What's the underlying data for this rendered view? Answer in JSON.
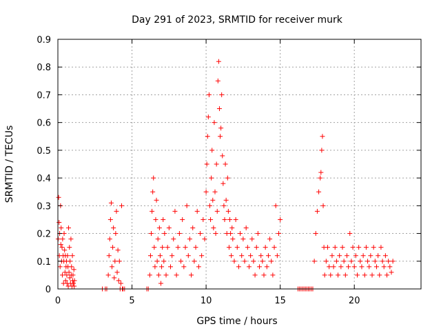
{
  "chart_data": {
    "type": "scatter",
    "title": "Day 291 of 2023, SRMTID for receiver murk",
    "xlabel": "GPS time / hours",
    "ylabel": "SRMTID / TECUs",
    "xlim": [
      0,
      24.5
    ],
    "ylim": [
      0,
      0.9
    ],
    "xticks": [
      "0",
      "5",
      "10",
      "15",
      "20"
    ],
    "yticks": [
      "0",
      "0.1",
      "0.2",
      "0.3",
      "0.4",
      "0.5",
      "0.6",
      "0.7",
      "0.8",
      "0.9"
    ],
    "grid": true,
    "marker": "+",
    "color": "#ff0000",
    "series": [
      {
        "x": [
          0.02,
          0.05,
          0.08,
          0.1,
          0.12,
          0.15,
          0.18,
          0.2,
          0.22,
          0.25,
          0.28,
          0.3,
          0.32,
          0.35,
          0.38,
          0.4,
          0.42,
          0.45,
          0.48,
          0.5,
          0.52,
          0.55,
          0.58,
          0.6,
          0.62,
          0.65,
          0.68,
          0.7,
          0.72,
          0.75,
          0.78,
          0.8,
          0.82,
          0.85,
          0.88,
          0.9,
          0.92,
          0.95,
          0.98,
          1.0,
          1.02,
          1.05,
          1.08,
          1.1,
          1.12,
          3.0,
          3.2,
          3.3,
          3.4,
          3.45,
          3.5,
          3.55,
          3.6,
          3.65,
          3.7,
          3.75,
          3.8,
          3.85,
          3.9,
          3.95,
          4.0,
          4.05,
          4.1,
          4.15,
          4.2,
          4.25,
          4.3,
          4.35,
          4.4,
          4.5,
          6.0,
          6.1,
          6.2,
          6.25,
          6.3,
          6.35,
          6.4,
          6.45,
          6.5,
          6.55,
          6.6,
          6.65,
          6.7,
          6.75,
          6.8,
          6.85,
          6.9,
          6.95,
          7.0,
          7.05,
          7.1,
          7.15,
          7.2,
          7.3,
          7.4,
          7.5,
          7.6,
          7.7,
          7.8,
          7.9,
          8.0,
          8.1,
          8.2,
          8.3,
          8.4,
          8.5,
          8.6,
          8.7,
          8.8,
          8.9,
          9.0,
          9.1,
          9.2,
          9.3,
          9.4,
          9.5,
          9.6,
          9.7,
          9.8,
          9.9,
          10.0,
          10.05,
          10.1,
          10.15,
          10.2,
          10.25,
          10.3,
          10.35,
          10.4,
          10.45,
          10.5,
          10.55,
          10.6,
          10.65,
          10.7,
          10.75,
          10.8,
          10.85,
          10.9,
          10.95,
          11.0,
          11.05,
          11.1,
          11.15,
          11.2,
          11.25,
          11.3,
          11.35,
          11.4,
          11.45,
          11.5,
          11.55,
          11.6,
          11.65,
          11.7,
          11.75,
          11.8,
          11.9,
          12.0,
          12.1,
          12.2,
          12.3,
          12.4,
          12.5,
          12.6,
          12.7,
          12.8,
          12.9,
          13.0,
          13.1,
          13.2,
          13.3,
          13.4,
          13.5,
          13.6,
          13.7,
          13.8,
          13.9,
          14.0,
          14.1,
          14.2,
          14.3,
          14.4,
          14.5,
          14.6,
          14.7,
          14.8,
          14.9,
          15.0,
          16.2,
          16.3,
          16.4,
          16.5,
          16.6,
          16.7,
          16.8,
          16.9,
          17.0,
          17.1,
          17.2,
          17.3,
          17.4,
          17.5,
          17.6,
          17.7,
          17.75,
          17.8,
          17.85,
          17.9,
          17.95,
          18.0,
          18.1,
          18.2,
          18.3,
          18.4,
          18.5,
          18.6,
          18.7,
          18.8,
          18.9,
          19.0,
          19.1,
          19.2,
          19.3,
          19.4,
          19.5,
          19.6,
          19.7,
          19.8,
          19.9,
          20.0,
          20.1,
          20.2,
          20.3,
          20.4,
          20.5,
          20.6,
          20.7,
          20.8,
          20.9,
          21.0,
          21.1,
          21.2,
          21.3,
          21.4,
          21.5,
          21.6,
          21.7,
          21.8,
          21.9,
          22.0,
          22.1,
          22.2,
          22.3,
          22.4,
          22.5,
          22.6
        ],
        "y": [
          0.18,
          0.33,
          0.24,
          0.12,
          0.2,
          0.08,
          0.3,
          0.16,
          0.22,
          0.1,
          0.15,
          0.05,
          0.18,
          0.12,
          0.02,
          0.1,
          0.2,
          0.14,
          0.06,
          0.12,
          0.03,
          0.08,
          0.1,
          0.05,
          0.02,
          0.12,
          0.08,
          0.01,
          0.22,
          0.06,
          0.15,
          0.04,
          0.1,
          0.02,
          0.18,
          0.05,
          0.08,
          0.01,
          0.12,
          0.03,
          0.05,
          0.02,
          0.07,
          0.01,
          0.03,
          0.0,
          0.0,
          0.0,
          0.05,
          0.12,
          0.18,
          0.25,
          0.31,
          0.08,
          0.15,
          0.22,
          0.04,
          0.1,
          0.2,
          0.28,
          0.06,
          0.14,
          0.03,
          0.1,
          0.0,
          0.02,
          0.3,
          0.0,
          0.0,
          0.0,
          0.0,
          0.0,
          0.05,
          0.12,
          0.2,
          0.28,
          0.35,
          0.4,
          0.15,
          0.08,
          0.25,
          0.32,
          0.1,
          0.18,
          0.05,
          0.22,
          0.12,
          0.02,
          0.08,
          0.15,
          0.25,
          0.1,
          0.2,
          0.05,
          0.15,
          0.22,
          0.08,
          0.12,
          0.18,
          0.28,
          0.05,
          0.15,
          0.2,
          0.1,
          0.25,
          0.08,
          0.15,
          0.3,
          0.12,
          0.18,
          0.05,
          0.22,
          0.1,
          0.15,
          0.28,
          0.08,
          0.2,
          0.12,
          0.25,
          0.18,
          0.35,
          0.45,
          0.55,
          0.62,
          0.7,
          0.3,
          0.25,
          0.4,
          0.5,
          0.32,
          0.22,
          0.6,
          0.35,
          0.2,
          0.45,
          0.28,
          0.75,
          0.82,
          0.65,
          0.55,
          0.58,
          0.7,
          0.48,
          0.38,
          0.3,
          0.25,
          0.45,
          0.32,
          0.2,
          0.4,
          0.28,
          0.15,
          0.25,
          0.2,
          0.12,
          0.22,
          0.18,
          0.1,
          0.25,
          0.15,
          0.08,
          0.2,
          0.12,
          0.18,
          0.1,
          0.22,
          0.15,
          0.08,
          0.12,
          0.18,
          0.1,
          0.05,
          0.15,
          0.2,
          0.08,
          0.12,
          0.1,
          0.05,
          0.15,
          0.08,
          0.12,
          0.18,
          0.1,
          0.05,
          0.15,
          0.3,
          0.12,
          0.2,
          0.25,
          0.0,
          0.0,
          0.0,
          0.0,
          0.0,
          0.0,
          0.0,
          0.0,
          0.0,
          0.0,
          0.0,
          0.1,
          0.2,
          0.28,
          0.35,
          0.4,
          0.42,
          0.5,
          0.55,
          0.3,
          0.15,
          0.05,
          0.1,
          0.15,
          0.08,
          0.05,
          0.12,
          0.08,
          0.15,
          0.1,
          0.05,
          0.12,
          0.08,
          0.15,
          0.1,
          0.05,
          0.12,
          0.08,
          0.2,
          0.1,
          0.15,
          0.08,
          0.12,
          0.05,
          0.15,
          0.1,
          0.08,
          0.12,
          0.05,
          0.15,
          0.1,
          0.08,
          0.12,
          0.05,
          0.15,
          0.1,
          0.08,
          0.12,
          0.05,
          0.15,
          0.1,
          0.08,
          0.12,
          0.05,
          0.1,
          0.08,
          0.06,
          0.1
        ]
      }
    ]
  }
}
